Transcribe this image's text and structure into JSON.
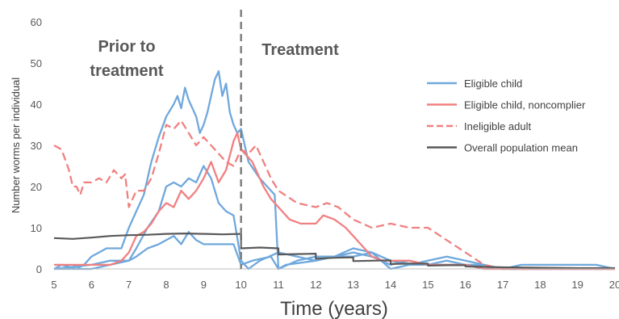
{
  "chart_data": {
    "type": "line",
    "title": "",
    "xlabel": "Time (years)",
    "ylabel": "Number worms per individual",
    "xlim": [
      5,
      20
    ],
    "ylim": [
      0,
      60
    ],
    "x_ticks": [
      "5",
      "6",
      "7",
      "8",
      "9",
      "10",
      "11",
      "12",
      "13",
      "14",
      "15",
      "16",
      "17",
      "18",
      "19",
      "20"
    ],
    "y_ticks": [
      "0",
      "10",
      "20",
      "30",
      "40",
      "50",
      "60"
    ],
    "grid": false,
    "legend_position": "right",
    "treatment_start": 10,
    "annotations": [
      {
        "lines": [
          "Prior to",
          "treatment"
        ]
      },
      {
        "lines": [
          "Treatment"
        ]
      }
    ],
    "series": [
      {
        "name": "Eligible child",
        "color": "#6FA8DC",
        "dash": "solid",
        "points": [
          [
            5,
            0
          ],
          [
            5.2,
            1
          ],
          [
            5.6,
            0
          ],
          [
            5.8,
            1
          ],
          [
            6,
            3
          ],
          [
            6.2,
            4
          ],
          [
            6.4,
            5
          ],
          [
            6.6,
            5
          ],
          [
            6.8,
            5
          ],
          [
            7,
            10
          ],
          [
            7.2,
            14
          ],
          [
            7.4,
            18
          ],
          [
            7.6,
            26
          ],
          [
            7.8,
            32
          ],
          [
            8,
            37
          ],
          [
            8.2,
            40
          ],
          [
            8.3,
            42
          ],
          [
            8.4,
            39
          ],
          [
            8.5,
            44
          ],
          [
            8.6,
            41
          ],
          [
            8.8,
            37
          ],
          [
            8.9,
            33
          ],
          [
            9,
            35
          ],
          [
            9.1,
            38
          ],
          [
            9.2,
            42
          ],
          [
            9.3,
            46
          ],
          [
            9.4,
            48
          ],
          [
            9.5,
            42
          ],
          [
            9.6,
            45
          ],
          [
            9.7,
            38
          ],
          [
            9.8,
            35
          ],
          [
            9.9,
            33
          ],
          [
            10,
            34
          ],
          [
            10.1,
            30
          ],
          [
            10.2,
            26
          ],
          [
            10.5,
            22
          ],
          [
            10.7,
            20
          ],
          [
            10.9,
            18
          ],
          [
            11,
            0
          ],
          [
            11.2,
            1
          ],
          [
            12,
            2
          ],
          [
            12.5,
            3
          ],
          [
            13,
            3
          ],
          [
            13.5,
            4
          ],
          [
            14,
            0
          ],
          [
            14.5,
            1
          ],
          [
            15,
            2
          ],
          [
            15.5,
            3
          ],
          [
            16,
            2
          ],
          [
            16.5,
            1
          ],
          [
            17,
            0
          ],
          [
            17.5,
            1
          ],
          [
            18,
            1
          ],
          [
            19,
            1
          ],
          [
            19.5,
            1
          ],
          [
            20,
            0
          ]
        ]
      },
      {
        "name": "Eligible child",
        "color": "#6FA8DC",
        "dash": "solid",
        "points": [
          [
            5,
            0
          ],
          [
            6,
            0
          ],
          [
            6.5,
            1
          ],
          [
            7,
            2
          ],
          [
            7.2,
            5
          ],
          [
            7.5,
            10
          ],
          [
            7.8,
            14
          ],
          [
            8,
            20
          ],
          [
            8.2,
            21
          ],
          [
            8.4,
            20
          ],
          [
            8.6,
            22
          ],
          [
            8.8,
            21
          ],
          [
            9,
            25
          ],
          [
            9.2,
            22
          ],
          [
            9.4,
            16
          ],
          [
            9.6,
            14
          ],
          [
            9.8,
            13
          ],
          [
            10,
            2
          ],
          [
            10.2,
            0
          ],
          [
            10.5,
            2
          ],
          [
            11,
            4
          ],
          [
            11.5,
            3
          ],
          [
            12,
            2
          ],
          [
            12.5,
            3
          ],
          [
            13,
            5
          ],
          [
            13.5,
            4
          ],
          [
            14,
            2
          ],
          [
            14.5,
            1
          ],
          [
            15,
            1
          ],
          [
            16,
            1
          ],
          [
            17,
            0
          ],
          [
            18,
            0
          ],
          [
            20,
            0
          ]
        ]
      },
      {
        "name": "Eligible child",
        "color": "#6FA8DC",
        "dash": "solid",
        "points": [
          [
            5,
            0
          ],
          [
            6,
            1
          ],
          [
            6.5,
            2
          ],
          [
            7,
            2
          ],
          [
            7.2,
            3
          ],
          [
            7.5,
            5
          ],
          [
            7.8,
            6
          ],
          [
            8,
            7
          ],
          [
            8.2,
            8
          ],
          [
            8.4,
            6
          ],
          [
            8.6,
            9
          ],
          [
            8.8,
            7
          ],
          [
            9,
            6
          ],
          [
            9.5,
            6
          ],
          [
            9.8,
            6
          ],
          [
            10,
            1
          ],
          [
            10.3,
            2
          ],
          [
            10.8,
            3
          ],
          [
            11,
            0
          ],
          [
            11.5,
            2
          ],
          [
            12,
            3
          ],
          [
            12.5,
            3
          ],
          [
            13,
            4
          ],
          [
            13.5,
            3
          ],
          [
            14,
            1
          ],
          [
            14.5,
            2
          ],
          [
            15,
            1
          ],
          [
            15.5,
            2
          ],
          [
            16,
            1
          ],
          [
            16.5,
            1
          ],
          [
            17,
            0
          ],
          [
            19,
            0
          ],
          [
            20,
            0
          ]
        ]
      },
      {
        "name": "Eligible child, noncomplier",
        "color": "#F08080",
        "dash": "solid",
        "points": [
          [
            5,
            1
          ],
          [
            6,
            1
          ],
          [
            6.5,
            1
          ],
          [
            6.8,
            2
          ],
          [
            7,
            4
          ],
          [
            7.2,
            8
          ],
          [
            7.4,
            9
          ],
          [
            7.6,
            11
          ],
          [
            7.8,
            14
          ],
          [
            8,
            16
          ],
          [
            8.2,
            15
          ],
          [
            8.4,
            19
          ],
          [
            8.6,
            17
          ],
          [
            8.8,
            19
          ],
          [
            9,
            22
          ],
          [
            9.2,
            26
          ],
          [
            9.4,
            21
          ],
          [
            9.6,
            24
          ],
          [
            9.8,
            31
          ],
          [
            9.9,
            33
          ],
          [
            10,
            29
          ],
          [
            10.1,
            28
          ],
          [
            10.3,
            26
          ],
          [
            10.6,
            20
          ],
          [
            10.8,
            17
          ],
          [
            11,
            15
          ],
          [
            11.3,
            12
          ],
          [
            11.6,
            11
          ],
          [
            12,
            11
          ],
          [
            12.2,
            13
          ],
          [
            12.5,
            12
          ],
          [
            12.8,
            10
          ],
          [
            13,
            8
          ],
          [
            13.2,
            6
          ],
          [
            13.5,
            3
          ],
          [
            13.8,
            2
          ],
          [
            14,
            2
          ],
          [
            14.5,
            2
          ],
          [
            15,
            1
          ],
          [
            15.5,
            1
          ],
          [
            16,
            1
          ],
          [
            16.5,
            0
          ],
          [
            17,
            0
          ],
          [
            20,
            0
          ]
        ]
      },
      {
        "name": "Ineligible adult",
        "color": "#F08080",
        "dash": "dashed",
        "points": [
          [
            5,
            30
          ],
          [
            5.2,
            29
          ],
          [
            5.4,
            24
          ],
          [
            5.5,
            20
          ],
          [
            5.6,
            20
          ],
          [
            5.7,
            18
          ],
          [
            5.8,
            21
          ],
          [
            6,
            21
          ],
          [
            6.2,
            22
          ],
          [
            6.4,
            21
          ],
          [
            6.6,
            24
          ],
          [
            6.8,
            22
          ],
          [
            6.9,
            23
          ],
          [
            7,
            15
          ],
          [
            7.2,
            19
          ],
          [
            7.4,
            19
          ],
          [
            7.6,
            22
          ],
          [
            7.8,
            28
          ],
          [
            8,
            35
          ],
          [
            8.2,
            34
          ],
          [
            8.4,
            36
          ],
          [
            8.6,
            33
          ],
          [
            8.8,
            30
          ],
          [
            9,
            32
          ],
          [
            9.2,
            30
          ],
          [
            9.4,
            28
          ],
          [
            9.6,
            26
          ],
          [
            9.8,
            25
          ],
          [
            10,
            29
          ],
          [
            10.2,
            28
          ],
          [
            10.4,
            30
          ],
          [
            10.6,
            26
          ],
          [
            10.8,
            22
          ],
          [
            11,
            19
          ],
          [
            11.5,
            16
          ],
          [
            12,
            15
          ],
          [
            12.3,
            16
          ],
          [
            12.6,
            15
          ],
          [
            13,
            12
          ],
          [
            13.5,
            10
          ],
          [
            14,
            11
          ],
          [
            14.5,
            10
          ],
          [
            15,
            10
          ],
          [
            15.5,
            7
          ],
          [
            16,
            4
          ],
          [
            16.5,
            1
          ],
          [
            17,
            0
          ],
          [
            20,
            0
          ]
        ]
      },
      {
        "name": "Overall population mean",
        "color": "#595959",
        "dash": "solid",
        "points": [
          [
            5,
            7.5
          ],
          [
            5.5,
            7.3
          ],
          [
            6,
            7.6
          ],
          [
            6.5,
            8
          ],
          [
            7,
            8.2
          ],
          [
            7.5,
            8.3
          ],
          [
            8,
            8.5
          ],
          [
            8.5,
            8.6
          ],
          [
            9,
            8.5
          ],
          [
            9.5,
            8.4
          ],
          [
            10,
            8.5
          ],
          [
            10,
            5
          ],
          [
            10.5,
            5.2
          ],
          [
            11,
            5
          ],
          [
            11,
            3.5
          ],
          [
            11.5,
            3.6
          ],
          [
            12,
            3.7
          ],
          [
            12,
            2.5
          ],
          [
            12.5,
            2.7
          ],
          [
            13,
            2.8
          ],
          [
            13,
            1.9
          ],
          [
            13.5,
            2
          ],
          [
            14,
            2.1
          ],
          [
            14,
            1.2
          ],
          [
            14.5,
            1.3
          ],
          [
            15,
            1.3
          ],
          [
            15,
            0.8
          ],
          [
            15.5,
            0.9
          ],
          [
            16,
            0.9
          ],
          [
            16,
            0.6
          ],
          [
            16.5,
            0.5
          ],
          [
            17,
            0.4
          ],
          [
            18,
            0.3
          ],
          [
            19,
            0.2
          ],
          [
            20,
            0.2
          ]
        ]
      }
    ],
    "legend": [
      {
        "name": "Eligible child",
        "color": "#6FA8DC",
        "dash": "solid"
      },
      {
        "name": "Eligible child, noncomplier",
        "color": "#F08080",
        "dash": "solid"
      },
      {
        "name": "Ineligible adult",
        "color": "#F08080",
        "dash": "dashed"
      },
      {
        "name": "Overall population mean",
        "color": "#595959",
        "dash": "solid"
      }
    ]
  }
}
